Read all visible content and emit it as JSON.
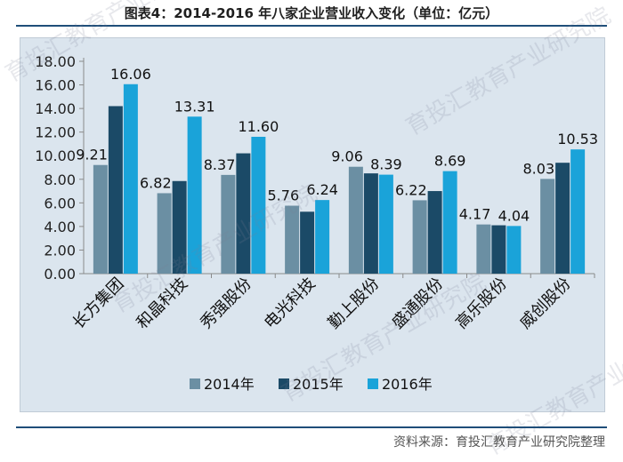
{
  "header": {
    "title": "图表4：2014-2016 年八家企业营业收入变化（单位：亿元）"
  },
  "footer": {
    "source": "资料来源：育投汇教育产业研究院整理"
  },
  "watermark": {
    "text": "育投汇教育产业研究院"
  },
  "colors": {
    "s2014": "#6b8fa3",
    "s2015": "#1b4a67",
    "s2016": "#1aa3d9",
    "plot_bg": "#dbe5ee"
  },
  "chart_data": {
    "type": "bar",
    "categories": [
      "长方集团",
      "和晶科技",
      "秀强股份",
      "电光科技",
      "勤上股份",
      "盛通股份",
      "高乐股份",
      "威创股份"
    ],
    "series": [
      {
        "name": "2014年",
        "values": [
          9.21,
          6.82,
          8.37,
          5.76,
          9.06,
          6.22,
          4.17,
          8.03
        ]
      },
      {
        "name": "2015年",
        "values": [
          14.2,
          7.85,
          10.2,
          5.25,
          8.5,
          7.0,
          4.1,
          9.4
        ]
      },
      {
        "name": "2016年",
        "values": [
          16.06,
          13.31,
          11.6,
          6.24,
          8.39,
          8.69,
          4.04,
          10.53
        ]
      }
    ],
    "data_labels": [
      {
        "category": 0,
        "series": 0,
        "text": "9.21"
      },
      {
        "category": 0,
        "series": 2,
        "text": "16.06"
      },
      {
        "category": 1,
        "series": 0,
        "text": "6.82"
      },
      {
        "category": 1,
        "series": 2,
        "text": "13.31"
      },
      {
        "category": 2,
        "series": 0,
        "text": "8.37"
      },
      {
        "category": 2,
        "series": 2,
        "text": "11.60"
      },
      {
        "category": 3,
        "series": 0,
        "text": "5.76"
      },
      {
        "category": 3,
        "series": 2,
        "text": "6.24"
      },
      {
        "category": 4,
        "series": 0,
        "text": "9.06"
      },
      {
        "category": 4,
        "series": 2,
        "text": "8.39"
      },
      {
        "category": 5,
        "series": 0,
        "text": "6.22"
      },
      {
        "category": 5,
        "series": 2,
        "text": "8.69"
      },
      {
        "category": 6,
        "series": 0,
        "text": "4.17"
      },
      {
        "category": 6,
        "series": 2,
        "text": "4.04"
      },
      {
        "category": 7,
        "series": 0,
        "text": "8.03"
      },
      {
        "category": 7,
        "series": 2,
        "text": "10.53"
      }
    ],
    "yticks": [
      "0.00",
      "2.00",
      "4.00",
      "6.00",
      "8.00",
      "10.00",
      "12.00",
      "14.00",
      "16.00",
      "18.00"
    ],
    "ylim": [
      0,
      18
    ],
    "grid": false,
    "legend_position": "bottom"
  }
}
